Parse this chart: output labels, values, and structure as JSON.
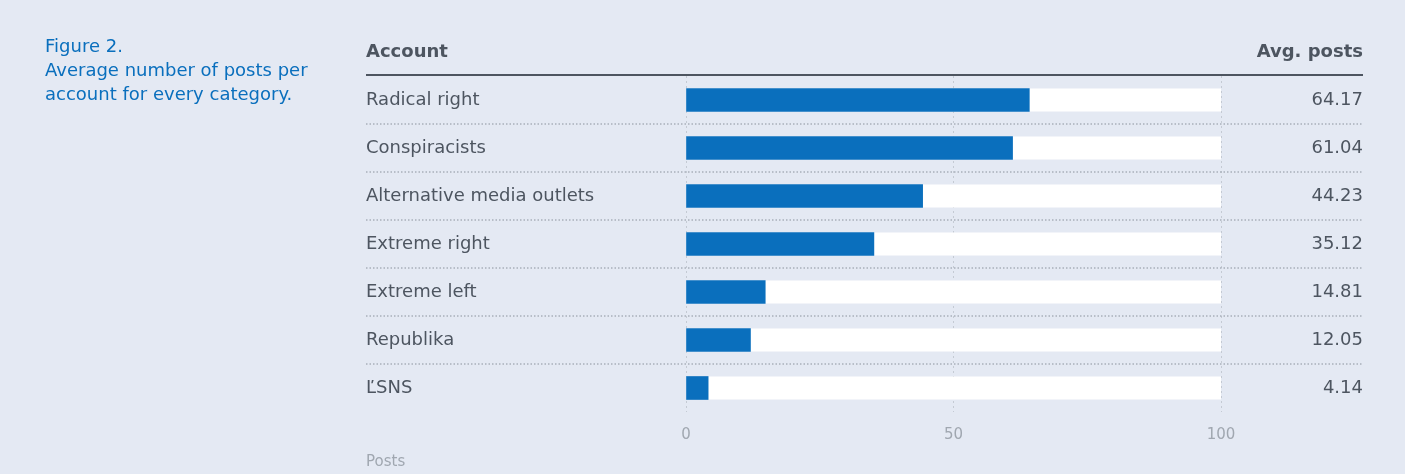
{
  "chart_data": {
    "type": "bar",
    "orientation": "horizontal",
    "title": "Figure 2.",
    "subtitle": "Average number of posts per account for every category.",
    "ylabel": "Account",
    "xlabel": "Posts",
    "annotations": [
      "Avg. posts"
    ],
    "categories": [
      "Radical right",
      "Conspiracists",
      "Alternative media outlets",
      "Extreme right",
      "Extreme left",
      "Republika",
      "ĽSNS"
    ],
    "values": [
      64.17,
      61.04,
      44.23,
      35.12,
      14.81,
      12.05,
      4.14
    ],
    "color": "#0a6fbd",
    "xlim": [
      0,
      100
    ],
    "xticks": [
      0,
      50,
      100
    ],
    "grid": true,
    "data_labels": true
  }
}
